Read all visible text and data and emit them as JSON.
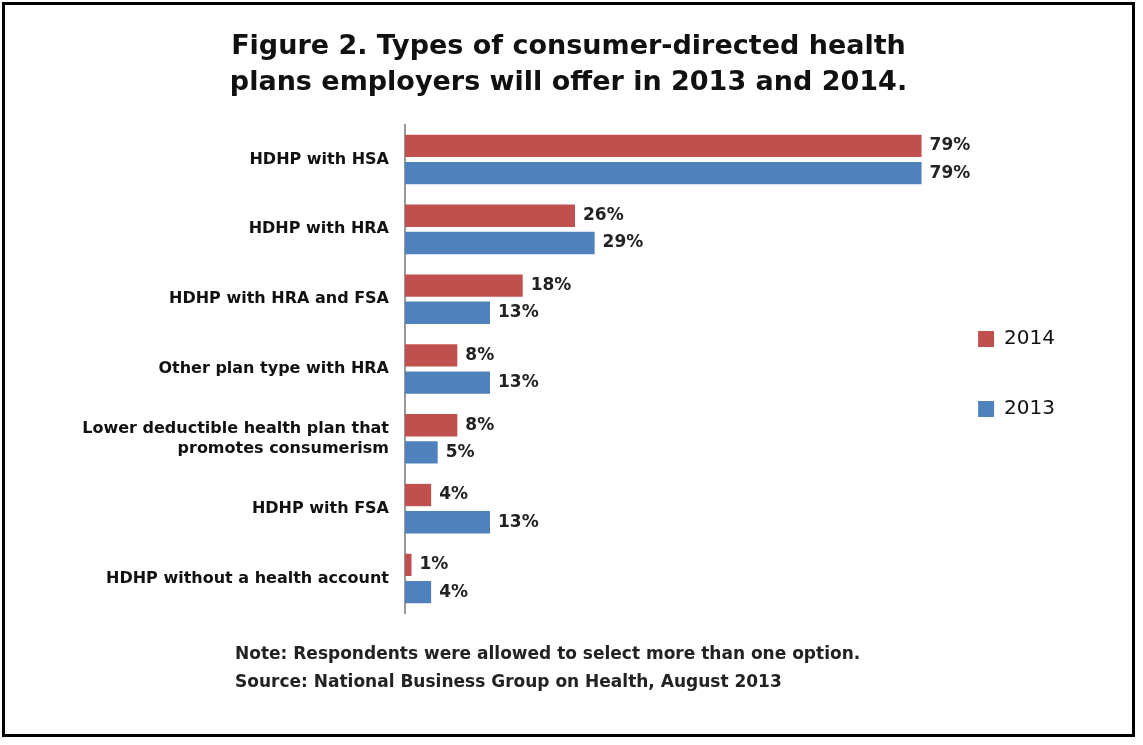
{
  "chart_data": {
    "type": "bar",
    "orientation": "horizontal",
    "title": "Figure 2. Types of consumer-directed health plans employers will offer in 2013 and 2014.",
    "categories": [
      "HDHP with HSA",
      "HDHP with HRA",
      "HDHP with HRA and FSA",
      "Other plan type with HRA",
      "Lower deductible health plan that promotes consumerism",
      "HDHP with FSA",
      "HDHP without a health account"
    ],
    "series": [
      {
        "name": "2014",
        "color": "#c0504d",
        "values": [
          79,
          26,
          18,
          8,
          8,
          4,
          1
        ],
        "value_labels": [
          "79%",
          "26%",
          "18%",
          "8%",
          "8%",
          "4%",
          "1%"
        ]
      },
      {
        "name": "2013",
        "color": "#4f81bd",
        "values": [
          79,
          29,
          13,
          13,
          5,
          13,
          4
        ],
        "value_labels": [
          "79%",
          "29%",
          "13%",
          "13%",
          "5%",
          "13%",
          "4%"
        ]
      }
    ],
    "tick_labels": "y",
    "grid": false,
    "legend": "right",
    "annotations": [
      "Note: Respondents were allowed to select more than one option.",
      "Source: National Business Group on Health, August 2013"
    ]
  }
}
